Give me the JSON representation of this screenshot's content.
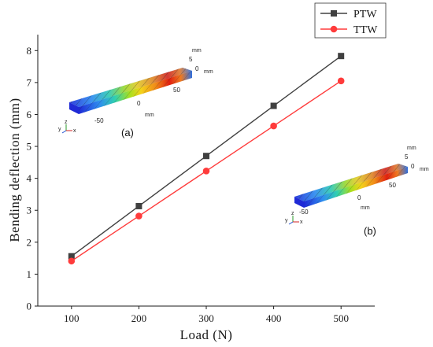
{
  "chart_data": {
    "type": "line",
    "xlabel": "Load (N)",
    "ylabel": "Bending deflection (mm)",
    "x": [
      100,
      200,
      300,
      400,
      500
    ],
    "x_ticks": [
      "100",
      "200",
      "300",
      "400",
      "500"
    ],
    "y_ticks": [
      "0",
      "1",
      "2",
      "3",
      "4",
      "5",
      "6",
      "7",
      "8"
    ],
    "xlim": [
      50,
      550
    ],
    "ylim": [
      0,
      8.5
    ],
    "grid": false,
    "legend_position": "top-right",
    "series": [
      {
        "name": "PTW",
        "color": "#404040",
        "marker": "square",
        "values": [
          1.56,
          3.13,
          4.7,
          6.27,
          7.83
        ]
      },
      {
        "name": "TTW",
        "color": "#ff3b3b",
        "marker": "circle",
        "values": [
          1.41,
          2.82,
          4.23,
          5.64,
          7.05
        ]
      }
    ]
  },
  "insets": [
    {
      "panel_label": "(a)",
      "unit_label": "mm",
      "axis_ticks": [
        "5",
        "0",
        "-50",
        "0",
        "50"
      ],
      "axis_unit_labels": [
        "mm",
        "mm",
        "mm"
      ],
      "triad_labels": [
        "y",
        "z",
        "x"
      ]
    },
    {
      "panel_label": "(b)",
      "unit_label": "mm",
      "axis_ticks": [
        "5",
        "0",
        "-50",
        "0",
        "50"
      ],
      "axis_unit_labels": [
        "mm",
        "mm",
        "mm"
      ],
      "triad_labels": [
        "y",
        "z",
        "x"
      ]
    }
  ]
}
